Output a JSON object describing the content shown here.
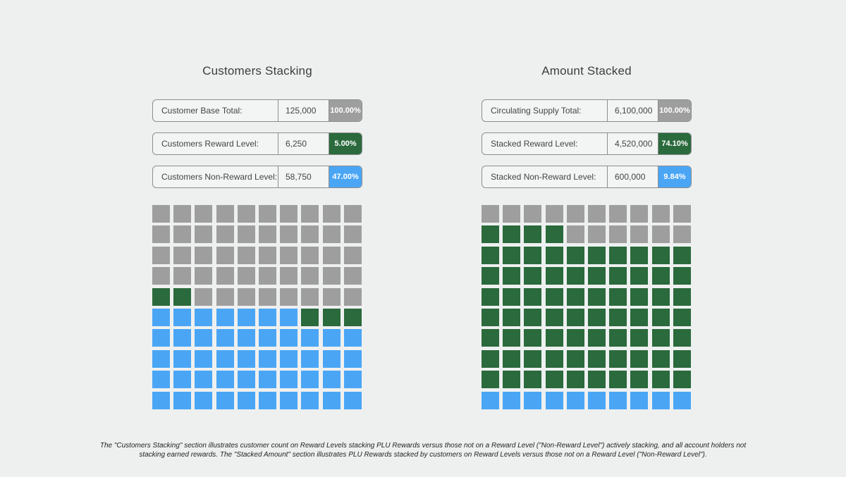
{
  "colors": {
    "gray": "#9e9e9e",
    "green": "#2a6a3c",
    "blue": "#4aa6f5"
  },
  "left_panel": {
    "title": "Customers Stacking",
    "rows": [
      {
        "label": "Customer Base Total:",
        "value": "125,000",
        "pct": "100.00%",
        "color": "#9e9e9e"
      },
      {
        "label": "Customers Reward Level:",
        "value": "6,250",
        "pct": "5.00%",
        "color": "#2a6a3c"
      },
      {
        "label": "Customers Non-Reward Level:",
        "value": "58,750",
        "pct": "47.00%",
        "color": "#4aa6f5"
      }
    ]
  },
  "right_panel": {
    "title": "Amount Stacked",
    "rows": [
      {
        "label": "Circulating Supply Total:",
        "value": "6,100,000",
        "pct": "100.00%",
        "color": "#9e9e9e"
      },
      {
        "label": "Stacked Reward Level:",
        "value": "4,520,000",
        "pct": "74.10%",
        "color": "#2a6a3c"
      },
      {
        "label": "Stacked Non-Reward Level:",
        "value": "600,000",
        "pct": "9.84%",
        "color": "#4aa6f5"
      }
    ]
  },
  "chart_data": [
    {
      "type": "waffle",
      "title": "Customers Stacking",
      "grid": [
        10,
        10
      ],
      "fill_order": "bottom-up",
      "segments": [
        {
          "name": "Customers Non-Reward Level",
          "count": 47,
          "color": "#4aa6f5"
        },
        {
          "name": "Customers Reward Level",
          "count": 5,
          "color": "#2a6a3c"
        },
        {
          "name": "Customer Base Total",
          "count": 48,
          "color": "#9e9e9e"
        }
      ]
    },
    {
      "type": "waffle",
      "title": "Amount Stacked",
      "grid": [
        10,
        10
      ],
      "fill_order": "bottom-up",
      "segments": [
        {
          "name": "Stacked Non-Reward Level",
          "count": 10,
          "color": "#4aa6f5"
        },
        {
          "name": "Stacked Reward Level",
          "count": 74,
          "color": "#2a6a3c"
        },
        {
          "name": "Circulating Supply Total",
          "count": 16,
          "color": "#9e9e9e"
        }
      ]
    }
  ],
  "caption": "The \"Customers Stacking\" section illustrates customer count on Reward Levels stacking PLU Rewards versus those not on a Reward Level (\"Non-Reward Level\") actively stacking, and all account holders not stacking earned rewards. The \"Stacked Amount\" section illustrates PLU Rewards stacked by customers on Reward Levels versus those not on a Reward Level (\"Non-Reward Level\")."
}
